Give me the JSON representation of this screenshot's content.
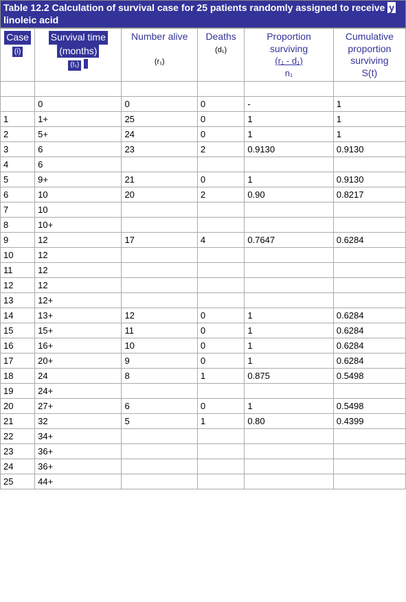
{
  "title_prefix": "Table 12.2 Calculation of survival case for 25 patients randomly assigned to receive ",
  "title_gamma": "y",
  "title_suffix": " linoleic acid",
  "headers": {
    "case": "Case",
    "case_sub": "(i)",
    "survival": "Survival time",
    "survival_sub1": "(months)",
    "survival_sub2": "(t₁)",
    "number_alive": "Number alive",
    "number_alive_sub": "(r₁)",
    "deaths": "Deaths",
    "deaths_sub": "(d₁)",
    "proportion": "Proportion surviving",
    "proportion_formula": "(r₁ - d₁)",
    "proportion_denom": "n₁",
    "cumulative": "Cumulative proportion surviving",
    "cumulative_sub": "S(t)"
  },
  "rows": [
    {
      "case": "",
      "time": "0",
      "alive": "0",
      "deaths": "0",
      "prop": "-",
      "cum": "1"
    },
    {
      "case": "1",
      "time": "1+",
      "alive": "25",
      "deaths": "0",
      "prop": "1",
      "cum": "1"
    },
    {
      "case": "2",
      "time": "5+",
      "alive": "24",
      "deaths": "0",
      "prop": "1",
      "cum": "1"
    },
    {
      "case": "3",
      "time": "6",
      "alive": "23",
      "deaths": "2",
      "prop": "0.9130",
      "cum": "0.9130"
    },
    {
      "case": "4",
      "time": "6",
      "alive": "",
      "deaths": "",
      "prop": "",
      "cum": ""
    },
    {
      "case": "5",
      "time": "9+",
      "alive": "21",
      "deaths": "0",
      "prop": "1",
      "cum": "0.9130"
    },
    {
      "case": "6",
      "time": "10",
      "alive": "20",
      "deaths": "2",
      "prop": "0.90",
      "cum": "0.8217"
    },
    {
      "case": "7",
      "time": "10",
      "alive": "",
      "deaths": "",
      "prop": "",
      "cum": ""
    },
    {
      "case": "8",
      "time": "10+",
      "alive": "",
      "deaths": "",
      "prop": "",
      "cum": ""
    },
    {
      "case": "9",
      "time": "12",
      "alive": "17",
      "deaths": "4",
      "prop": "0.7647",
      "cum": "0.6284"
    },
    {
      "case": "10",
      "time": "12",
      "alive": "",
      "deaths": "",
      "prop": "",
      "cum": ""
    },
    {
      "case": "11",
      "time": "12",
      "alive": "",
      "deaths": "",
      "prop": "",
      "cum": ""
    },
    {
      "case": "12",
      "time": "12",
      "alive": "",
      "deaths": "",
      "prop": "",
      "cum": ""
    },
    {
      "case": "13",
      "time": "12+",
      "alive": "",
      "deaths": "",
      "prop": "",
      "cum": ""
    },
    {
      "case": "14",
      "time": "13+",
      "alive": "12",
      "deaths": "0",
      "prop": "1",
      "cum": "0.6284"
    },
    {
      "case": "15",
      "time": "15+",
      "alive": "11",
      "deaths": "0",
      "prop": "1",
      "cum": "0.6284"
    },
    {
      "case": "16",
      "time": "16+",
      "alive": "10",
      "deaths": "0",
      "prop": "1",
      "cum": "0.6284"
    },
    {
      "case": "17",
      "time": "20+",
      "alive": "9",
      "deaths": "0",
      "prop": "1",
      "cum": "0.6284"
    },
    {
      "case": "18",
      "time": "24",
      "alive": "8",
      "deaths": "1",
      "prop": "0.875",
      "cum": "0.5498"
    },
    {
      "case": "19",
      "time": "24+",
      "alive": "",
      "deaths": "",
      "prop": "",
      "cum": ""
    },
    {
      "case": "20",
      "time": "27+",
      "alive": "6",
      "deaths": "0",
      "prop": "1",
      "cum": "0.5498"
    },
    {
      "case": "21",
      "time": "32",
      "alive": "5",
      "deaths": "1",
      "prop": "0.80",
      "cum": "0.4399"
    },
    {
      "case": "22",
      "time": "34+",
      "alive": "",
      "deaths": "",
      "prop": "",
      "cum": ""
    },
    {
      "case": "23",
      "time": "36+",
      "alive": "",
      "deaths": "",
      "prop": "",
      "cum": ""
    },
    {
      "case": "24",
      "time": "36+",
      "alive": "",
      "deaths": "",
      "prop": "",
      "cum": ""
    },
    {
      "case": "25",
      "time": "44+",
      "alive": "",
      "deaths": "",
      "prop": "",
      "cum": ""
    }
  ]
}
